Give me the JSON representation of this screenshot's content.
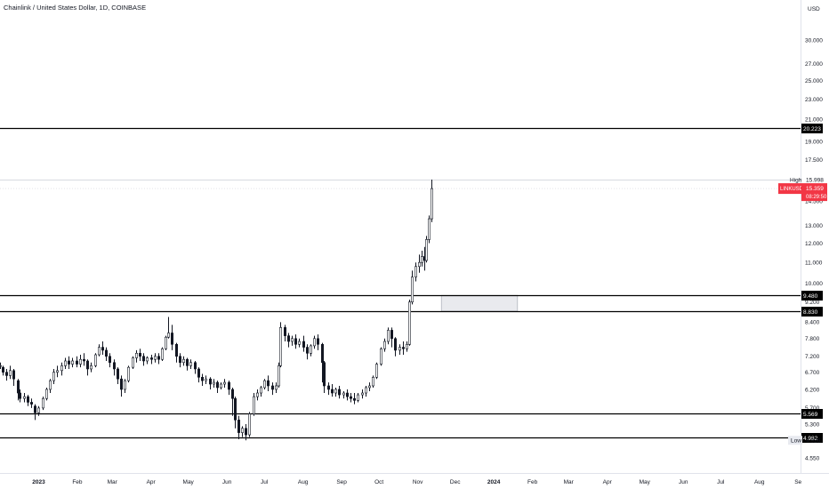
{
  "header": {
    "symbol_title": "Chainlink / United States Dollar, 1D, COINBASE"
  },
  "price_axis": {
    "currency_label": "USD"
  },
  "colors": {
    "candle": "#131722",
    "level_line": "#000000",
    "last_price": "#f23645",
    "axis_text": "#131722",
    "box_fill": "#e9eaee",
    "high_line": "#d1d4dc"
  },
  "chart_data": {
    "type": "candlestick",
    "title": "Chainlink / United States Dollar, 1D, COINBASE",
    "scale": "log",
    "y_unit": "USD",
    "ylim": [
      4.25,
      36.0
    ],
    "y_ticks": [
      "30.000",
      "27.000",
      "25.000",
      "23.000",
      "21.000",
      "19.000",
      "17.500",
      "14.500",
      "13.000",
      "12.000",
      "11.000",
      "10.000",
      "9.200",
      "8.400",
      "7.800",
      "7.200",
      "6.700",
      "6.200",
      "5.700",
      "5.300",
      "4.550"
    ],
    "y_tick_values": [
      30.0,
      27.0,
      25.0,
      23.0,
      21.0,
      19.0,
      17.5,
      14.5,
      13.0,
      12.0,
      11.0,
      10.0,
      9.2,
      8.4,
      7.8,
      7.2,
      6.7,
      6.2,
      5.7,
      5.3,
      4.55
    ],
    "x_ticks": [
      "2023",
      "Feb",
      "Mar",
      "Apr",
      "May",
      "Jun",
      "Jul",
      "Aug",
      "Sep",
      "Oct",
      "Nov",
      "Dec",
      "2024",
      "Feb",
      "Mar",
      "Apr",
      "May",
      "Jun",
      "Jul",
      "Aug",
      "Se"
    ],
    "x_tick_dates": [
      "2023-01-01",
      "2023-02-01",
      "2023-03-01",
      "2023-04-01",
      "2023-05-01",
      "2023-06-01",
      "2023-07-01",
      "2023-08-01",
      "2023-09-01",
      "2023-10-01",
      "2023-11-01",
      "2023-12-01",
      "2024-01-01",
      "2024-02-01",
      "2024-03-01",
      "2024-04-01",
      "2024-05-01",
      "2024-06-01",
      "2024-07-01",
      "2024-08-01",
      "2024-09-01"
    ],
    "x_bold": [
      "2023",
      "2024"
    ],
    "date_range": [
      "2022-12-01",
      "2024-09-03"
    ],
    "horizontal_levels": [
      {
        "value": 20.223,
        "label": "20.223"
      },
      {
        "value": 9.48,
        "label": "9.480"
      },
      {
        "value": 8.83,
        "label": "8.830"
      },
      {
        "value": 5.569,
        "label": "5.569"
      },
      {
        "value": 4.982,
        "label": "4.982"
      }
    ],
    "zone": {
      "start": "2023-11-20",
      "end": "2024-01-20",
      "top": 9.48,
      "bottom": 8.83
    },
    "high": {
      "label": "High",
      "value": "15.998",
      "price": 15.998
    },
    "low": {
      "label": "Low",
      "value": "4.926",
      "price": 4.926
    },
    "last": {
      "symbol": "LINKUSD",
      "value": "15.359",
      "price": 15.359,
      "countdown": "08:29:50"
    },
    "candles": [
      [
        "2022-12-01",
        6.9,
        7.0,
        6.9,
        6.8
      ],
      [
        "2022-12-03",
        6.85,
        6.9,
        6.7,
        6.6
      ],
      [
        "2022-12-06",
        6.7,
        6.8,
        6.6,
        6.45
      ],
      [
        "2022-12-09",
        6.6,
        6.9,
        6.75,
        6.5
      ],
      [
        "2022-12-12",
        6.75,
        6.8,
        6.5,
        6.3
      ],
      [
        "2022-12-15",
        6.45,
        6.5,
        6.1,
        5.9
      ],
      [
        "2022-12-17",
        6.1,
        6.2,
        5.95,
        5.85
      ],
      [
        "2022-12-20",
        5.95,
        6.1,
        6.0,
        5.85
      ],
      [
        "2022-12-23",
        6.0,
        6.05,
        5.85,
        5.75
      ],
      [
        "2022-12-26",
        5.85,
        5.95,
        5.8,
        5.7
      ],
      [
        "2022-12-29",
        5.75,
        5.8,
        5.58,
        5.4
      ],
      [
        "2023-01-01",
        5.58,
        5.75,
        5.7,
        5.5
      ],
      [
        "2023-01-04",
        5.7,
        6.0,
        5.95,
        5.65
      ],
      [
        "2023-01-07",
        5.95,
        6.25,
        6.2,
        5.9
      ],
      [
        "2023-01-10",
        6.2,
        6.5,
        6.45,
        6.1
      ],
      [
        "2023-01-13",
        6.45,
        6.8,
        6.7,
        6.35
      ],
      [
        "2023-01-16",
        6.7,
        6.9,
        6.75,
        6.55
      ],
      [
        "2023-01-19",
        6.75,
        7.0,
        6.9,
        6.6
      ],
      [
        "2023-01-22",
        6.9,
        7.15,
        7.05,
        6.8
      ],
      [
        "2023-01-25",
        7.05,
        7.2,
        6.95,
        6.8
      ],
      [
        "2023-01-28",
        6.95,
        7.15,
        7.05,
        6.85
      ],
      [
        "2023-01-31",
        7.05,
        7.2,
        6.95,
        6.85
      ],
      [
        "2023-02-03",
        6.95,
        7.25,
        7.1,
        6.85
      ],
      [
        "2023-02-06",
        7.1,
        7.3,
        7.05,
        6.9
      ],
      [
        "2023-02-09",
        7.05,
        7.1,
        6.8,
        6.6
      ],
      [
        "2023-02-12",
        6.8,
        7.0,
        6.9,
        6.7
      ],
      [
        "2023-02-15",
        6.9,
        7.3,
        7.25,
        6.85
      ],
      [
        "2023-02-18",
        7.25,
        7.6,
        7.5,
        7.2
      ],
      [
        "2023-02-21",
        7.5,
        7.7,
        7.4,
        7.25
      ],
      [
        "2023-02-24",
        7.4,
        7.5,
        7.2,
        7.05
      ],
      [
        "2023-02-27",
        7.2,
        7.3,
        7.0,
        6.85
      ],
      [
        "2023-03-02",
        7.0,
        7.1,
        6.8,
        6.6
      ],
      [
        "2023-03-05",
        6.8,
        6.85,
        6.5,
        6.35
      ],
      [
        "2023-03-08",
        6.5,
        6.6,
        6.2,
        6.0
      ],
      [
        "2023-03-11",
        6.2,
        6.5,
        6.45,
        6.1
      ],
      [
        "2023-03-14",
        6.45,
        6.9,
        6.85,
        6.4
      ],
      [
        "2023-03-17",
        6.85,
        7.2,
        7.15,
        6.8
      ],
      [
        "2023-03-20",
        7.15,
        7.4,
        7.3,
        7.0
      ],
      [
        "2023-03-23",
        7.3,
        7.45,
        7.2,
        7.05
      ],
      [
        "2023-03-26",
        7.2,
        7.3,
        7.05,
        6.9
      ],
      [
        "2023-03-29",
        7.05,
        7.2,
        7.15,
        6.95
      ],
      [
        "2023-04-01",
        7.15,
        7.25,
        7.1,
        6.95
      ],
      [
        "2023-04-04",
        7.1,
        7.3,
        7.2,
        7.0
      ],
      [
        "2023-04-07",
        7.2,
        7.3,
        7.1,
        6.95
      ],
      [
        "2023-04-10",
        7.1,
        7.5,
        7.45,
        7.05
      ],
      [
        "2023-04-13",
        7.45,
        7.9,
        7.85,
        7.4
      ],
      [
        "2023-04-15",
        7.85,
        8.6,
        8.0,
        7.8
      ],
      [
        "2023-04-18",
        8.0,
        8.3,
        7.6,
        7.4
      ],
      [
        "2023-04-21",
        7.6,
        7.65,
        7.2,
        7.0
      ],
      [
        "2023-04-24",
        7.2,
        7.3,
        7.0,
        6.85
      ],
      [
        "2023-04-27",
        7.0,
        7.2,
        7.1,
        6.9
      ],
      [
        "2023-04-30",
        7.1,
        7.15,
        6.9,
        6.75
      ],
      [
        "2023-05-03",
        6.9,
        7.1,
        7.0,
        6.8
      ],
      [
        "2023-05-06",
        7.0,
        7.05,
        6.8,
        6.65
      ],
      [
        "2023-05-09",
        6.8,
        6.85,
        6.55,
        6.4
      ],
      [
        "2023-05-12",
        6.55,
        6.65,
        6.45,
        6.3
      ],
      [
        "2023-05-15",
        6.45,
        6.6,
        6.5,
        6.35
      ],
      [
        "2023-05-18",
        6.5,
        6.55,
        6.35,
        6.2
      ],
      [
        "2023-05-21",
        6.35,
        6.5,
        6.4,
        6.25
      ],
      [
        "2023-05-24",
        6.4,
        6.45,
        6.25,
        6.1
      ],
      [
        "2023-05-27",
        6.25,
        6.4,
        6.35,
        6.2
      ],
      [
        "2023-05-30",
        6.35,
        6.5,
        6.4,
        6.25
      ],
      [
        "2023-06-02",
        6.4,
        6.45,
        6.2,
        6.05
      ],
      [
        "2023-06-05",
        6.2,
        6.25,
        5.95,
        5.5
      ],
      [
        "2023-06-07",
        5.95,
        6.0,
        5.4,
        5.2
      ],
      [
        "2023-06-10",
        5.4,
        5.5,
        5.1,
        4.95
      ],
      [
        "2023-06-13",
        5.1,
        5.25,
        5.2,
        5.0
      ],
      [
        "2023-06-16",
        5.2,
        5.3,
        5.05,
        4.926
      ],
      [
        "2023-06-19",
        5.05,
        5.6,
        5.55,
        5.0
      ],
      [
        "2023-06-22",
        5.55,
        6.1,
        6.0,
        5.5
      ],
      [
        "2023-06-25",
        6.0,
        6.2,
        6.1,
        5.9
      ],
      [
        "2023-06-28",
        6.1,
        6.3,
        6.25,
        6.0
      ],
      [
        "2023-07-01",
        6.25,
        6.5,
        6.45,
        6.2
      ],
      [
        "2023-07-04",
        6.45,
        6.6,
        6.3,
        6.15
      ],
      [
        "2023-07-07",
        6.3,
        6.4,
        6.2,
        6.05
      ],
      [
        "2023-07-10",
        6.2,
        6.4,
        6.3,
        6.1
      ],
      [
        "2023-07-12",
        6.3,
        7.0,
        6.9,
        6.25
      ],
      [
        "2023-07-14",
        6.9,
        8.4,
        8.2,
        6.85
      ],
      [
        "2023-07-17",
        8.2,
        8.3,
        7.9,
        7.7
      ],
      [
        "2023-07-20",
        7.9,
        8.0,
        7.7,
        7.5
      ],
      [
        "2023-07-23",
        7.7,
        7.9,
        7.8,
        7.55
      ],
      [
        "2023-07-26",
        7.8,
        7.95,
        7.6,
        7.45
      ],
      [
        "2023-07-29",
        7.6,
        7.8,
        7.7,
        7.5
      ],
      [
        "2023-08-01",
        7.7,
        7.9,
        7.5,
        7.35
      ],
      [
        "2023-08-04",
        7.5,
        7.6,
        7.3,
        7.1
      ],
      [
        "2023-08-07",
        7.3,
        7.6,
        7.55,
        7.2
      ],
      [
        "2023-08-10",
        7.55,
        7.9,
        7.8,
        7.45
      ],
      [
        "2023-08-13",
        7.8,
        7.95,
        7.6,
        7.4
      ],
      [
        "2023-08-16",
        7.6,
        7.65,
        7.0,
        6.4
      ],
      [
        "2023-08-18",
        7.0,
        7.05,
        6.3,
        6.1
      ],
      [
        "2023-08-21",
        6.3,
        6.4,
        6.2,
        6.05
      ],
      [
        "2023-08-24",
        6.2,
        6.35,
        6.1,
        6.0
      ],
      [
        "2023-08-27",
        6.1,
        6.25,
        6.2,
        6.0
      ],
      [
        "2023-08-30",
        6.2,
        6.3,
        6.05,
        5.95
      ],
      [
        "2023-09-02",
        6.05,
        6.15,
        6.1,
        5.95
      ],
      [
        "2023-09-05",
        6.1,
        6.2,
        6.0,
        5.9
      ],
      [
        "2023-09-08",
        6.0,
        6.1,
        5.95,
        5.85
      ],
      [
        "2023-09-11",
        5.95,
        6.1,
        5.9,
        5.8
      ],
      [
        "2023-09-14",
        5.9,
        6.1,
        6.05,
        5.85
      ],
      [
        "2023-09-17",
        6.05,
        6.2,
        6.1,
        5.95
      ],
      [
        "2023-09-20",
        6.1,
        6.3,
        6.25,
        6.0
      ],
      [
        "2023-09-23",
        6.25,
        6.4,
        6.3,
        6.15
      ],
      [
        "2023-09-26",
        6.3,
        6.6,
        6.55,
        6.25
      ],
      [
        "2023-09-29",
        6.55,
        7.0,
        6.95,
        6.5
      ],
      [
        "2023-10-02",
        6.95,
        7.5,
        7.45,
        6.9
      ],
      [
        "2023-10-05",
        7.45,
        7.8,
        7.7,
        7.35
      ],
      [
        "2023-10-08",
        7.7,
        8.2,
        8.1,
        7.6
      ],
      [
        "2023-10-11",
        8.1,
        8.2,
        7.8,
        7.5
      ],
      [
        "2023-10-14",
        7.8,
        7.85,
        7.4,
        7.2
      ],
      [
        "2023-10-17",
        7.4,
        7.6,
        7.5,
        7.25
      ],
      [
        "2023-10-20",
        7.5,
        7.7,
        7.45,
        7.25
      ],
      [
        "2023-10-23",
        7.45,
        7.7,
        7.6,
        7.35
      ],
      [
        "2023-10-25",
        7.6,
        9.3,
        9.2,
        7.55
      ],
      [
        "2023-10-27",
        9.2,
        10.6,
        10.3,
        9.1
      ],
      [
        "2023-10-30",
        10.3,
        11.0,
        10.8,
        10.1
      ],
      [
        "2023-11-02",
        10.8,
        11.4,
        11.0,
        10.5
      ],
      [
        "2023-11-04",
        11.0,
        11.6,
        11.3,
        10.8
      ],
      [
        "2023-11-06",
        11.3,
        11.8,
        11.1,
        10.6
      ],
      [
        "2023-11-08",
        11.1,
        12.4,
        12.2,
        11.0
      ],
      [
        "2023-11-10",
        12.2,
        13.6,
        13.4,
        12.0
      ],
      [
        "2023-11-12",
        13.4,
        15.998,
        15.359,
        13.2
      ]
    ]
  }
}
